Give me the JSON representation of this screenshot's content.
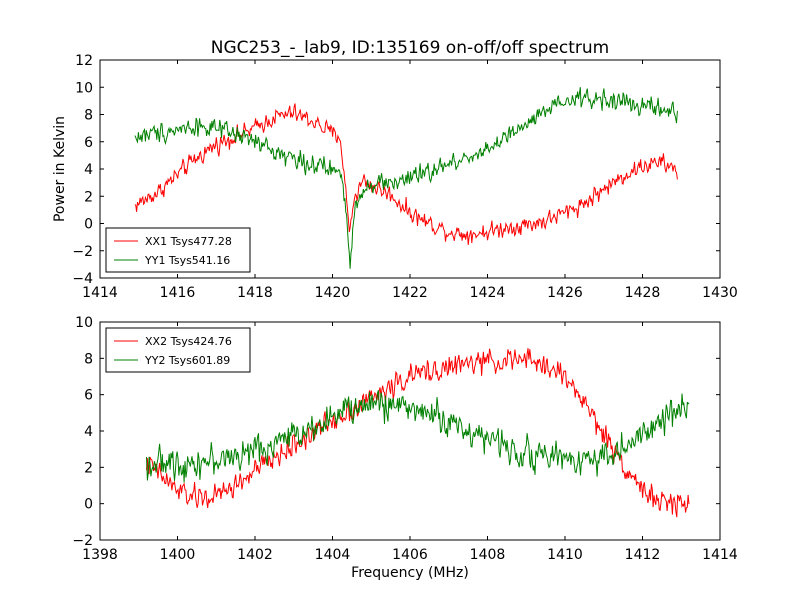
{
  "title": "NGC253_-_lab9, ID:135169 on-off/off spectrum",
  "colors": {
    "xx": "#ff0000",
    "yy": "#008000"
  },
  "chart_data": [
    {
      "type": "line",
      "xlabel": "",
      "ylabel": "Power in Kelvin",
      "xlim": [
        1414,
        1430
      ],
      "ylim": [
        -4,
        12
      ],
      "xticks": [
        1414,
        1416,
        1418,
        1420,
        1422,
        1424,
        1426,
        1428,
        1430
      ],
      "yticks": [
        -4,
        -2,
        0,
        2,
        4,
        6,
        8,
        10,
        12
      ],
      "legend_position": "lower-left",
      "series": [
        {
          "name": "XX1 Tsys477.28",
          "color": "#ff0000",
          "x_range": [
            1414.9,
            1428.9
          ],
          "points": [
            [
              1414.9,
              1.3
            ],
            [
              1415.5,
              2.3
            ],
            [
              1416,
              3.6
            ],
            [
              1416.5,
              4.8
            ],
            [
              1417,
              5.8
            ],
            [
              1417.5,
              6.4
            ],
            [
              1418,
              7.0
            ],
            [
              1418.5,
              7.8
            ],
            [
              1419,
              8.1
            ],
            [
              1419.5,
              7.5
            ],
            [
              1420,
              6.6
            ],
            [
              1420.2,
              6.4
            ],
            [
              1420.35,
              2.0
            ],
            [
              1420.45,
              -0.6
            ],
            [
              1420.55,
              1.8
            ],
            [
              1420.8,
              3.2
            ],
            [
              1421,
              2.8
            ],
            [
              1421.5,
              2.1
            ],
            [
              1422,
              0.8
            ],
            [
              1422.5,
              0.0
            ],
            [
              1423,
              -0.6
            ],
            [
              1423.5,
              -0.8
            ],
            [
              1424,
              -0.6
            ],
            [
              1424.5,
              -0.3
            ],
            [
              1425,
              -0.1
            ],
            [
              1425.5,
              0.2
            ],
            [
              1426,
              0.8
            ],
            [
              1426.5,
              1.5
            ],
            [
              1427,
              2.5
            ],
            [
              1427.5,
              3.5
            ],
            [
              1428,
              4.2
            ],
            [
              1428.5,
              4.5
            ],
            [
              1428.9,
              3.8
            ]
          ],
          "noise": 0.55
        },
        {
          "name": "YY1 Tsys541.16",
          "color": "#008000",
          "x_range": [
            1414.9,
            1428.9
          ],
          "points": [
            [
              1414.9,
              6.3
            ],
            [
              1415.5,
              6.7
            ],
            [
              1416,
              6.9
            ],
            [
              1416.5,
              7.2
            ],
            [
              1417,
              6.9
            ],
            [
              1417.5,
              6.5
            ],
            [
              1418,
              6.0
            ],
            [
              1418.5,
              5.3
            ],
            [
              1419,
              4.8
            ],
            [
              1419.5,
              4.3
            ],
            [
              1420,
              3.9
            ],
            [
              1420.2,
              3.8
            ],
            [
              1420.35,
              1.0
            ],
            [
              1420.45,
              -3.3
            ],
            [
              1420.55,
              1.0
            ],
            [
              1420.8,
              2.6
            ],
            [
              1421,
              3.0
            ],
            [
              1421.5,
              3.0
            ],
            [
              1422,
              3.3
            ],
            [
              1422.5,
              3.8
            ],
            [
              1423,
              4.3
            ],
            [
              1423.5,
              4.9
            ],
            [
              1424,
              5.5
            ],
            [
              1424.5,
              6.3
            ],
            [
              1425,
              7.2
            ],
            [
              1425.5,
              8.2
            ],
            [
              1426,
              8.9
            ],
            [
              1426.5,
              9.2
            ],
            [
              1427,
              9.1
            ],
            [
              1427.5,
              8.9
            ],
            [
              1428,
              8.6
            ],
            [
              1428.5,
              8.4
            ],
            [
              1428.9,
              8.0
            ]
          ],
          "noise": 0.6
        }
      ]
    },
    {
      "type": "line",
      "xlabel": "Frequency (MHz)",
      "ylabel": "",
      "xlim": [
        1398,
        1414
      ],
      "ylim": [
        -2,
        10
      ],
      "xticks": [
        1398,
        1400,
        1402,
        1404,
        1406,
        1408,
        1410,
        1412,
        1414
      ],
      "yticks": [
        -2,
        0,
        2,
        4,
        6,
        8,
        10
      ],
      "legend_position": "upper-left",
      "series": [
        {
          "name": "XX2 Tsys424.76",
          "color": "#ff0000",
          "x_range": [
            1399.2,
            1413.2
          ],
          "points": [
            [
              1399.2,
              2.2
            ],
            [
              1399.6,
              1.5
            ],
            [
              1400,
              0.7
            ],
            [
              1400.5,
              0.3
            ],
            [
              1401,
              0.4
            ],
            [
              1401.5,
              1.0
            ],
            [
              1402,
              1.8
            ],
            [
              1402.5,
              2.5
            ],
            [
              1403,
              3.2
            ],
            [
              1403.5,
              3.9
            ],
            [
              1404,
              4.6
            ],
            [
              1404.5,
              5.2
            ],
            [
              1405,
              5.8
            ],
            [
              1405.5,
              6.4
            ],
            [
              1406,
              7.0
            ],
            [
              1406.5,
              7.3
            ],
            [
              1407,
              7.5
            ],
            [
              1407.5,
              7.7
            ],
            [
              1408,
              7.8
            ],
            [
              1408.5,
              7.9
            ],
            [
              1409,
              7.9
            ],
            [
              1409.5,
              7.6
            ],
            [
              1410,
              7.0
            ],
            [
              1410.5,
              5.6
            ],
            [
              1411,
              3.8
            ],
            [
              1411.5,
              2.2
            ],
            [
              1412,
              0.8
            ],
            [
              1412.5,
              0.0
            ],
            [
              1413,
              0.0
            ],
            [
              1413.2,
              0.2
            ]
          ],
          "noise": 0.55
        },
        {
          "name": "YY2 Tsys601.89",
          "color": "#008000",
          "x_range": [
            1399.2,
            1413.2
          ],
          "points": [
            [
              1399.2,
              2.2
            ],
            [
              1400,
              2.2
            ],
            [
              1400.5,
              2.3
            ],
            [
              1401,
              2.4
            ],
            [
              1401.5,
              2.6
            ],
            [
              1402,
              2.9
            ],
            [
              1402.5,
              3.3
            ],
            [
              1403,
              3.8
            ],
            [
              1403.5,
              4.3
            ],
            [
              1404,
              4.8
            ],
            [
              1404.5,
              5.2
            ],
            [
              1405,
              5.5
            ],
            [
              1405.5,
              5.5
            ],
            [
              1406,
              5.3
            ],
            [
              1406.5,
              5.0
            ],
            [
              1407,
              4.5
            ],
            [
              1407.5,
              4.0
            ],
            [
              1408,
              3.6
            ],
            [
              1408.5,
              3.1
            ],
            [
              1409,
              2.8
            ],
            [
              1409.5,
              2.6
            ],
            [
              1410,
              2.5
            ],
            [
              1410.5,
              2.5
            ],
            [
              1411,
              2.6
            ],
            [
              1411.5,
              3.0
            ],
            [
              1412,
              3.7
            ],
            [
              1412.5,
              4.5
            ],
            [
              1413,
              5.3
            ],
            [
              1413.2,
              5.6
            ]
          ],
          "noise": 0.7
        }
      ]
    }
  ]
}
